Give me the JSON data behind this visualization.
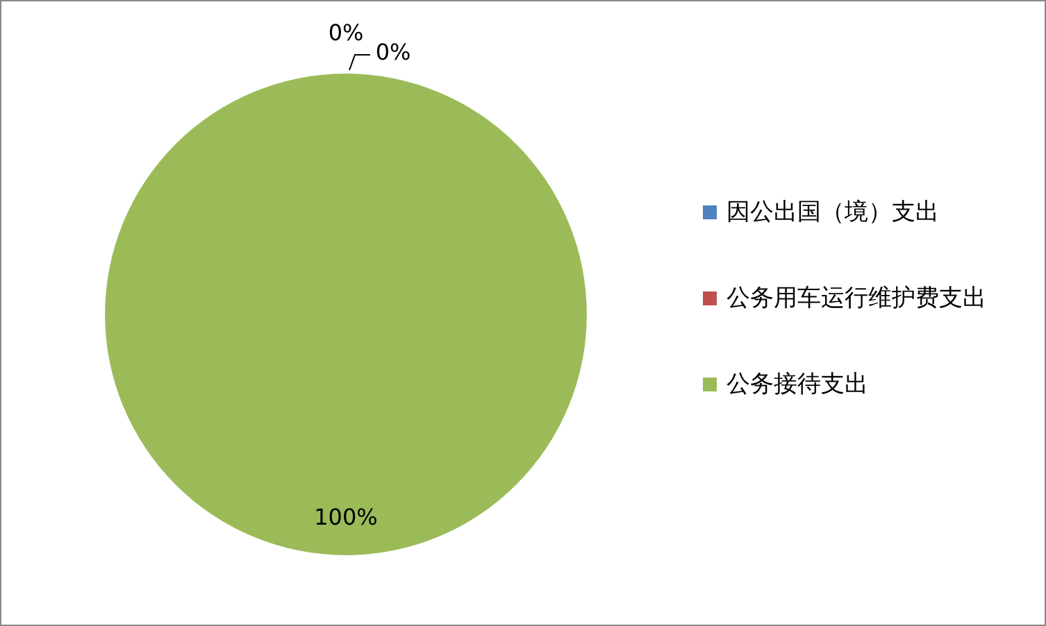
{
  "chart_data": {
    "type": "pie",
    "categories": [
      "因公出国（境）支出",
      "公务用车运行维护费支出",
      "公务接待支出"
    ],
    "values": [
      0,
      0,
      100
    ],
    "colors": [
      "#4f81bd",
      "#c0504d",
      "#9bbb59"
    ],
    "value_labels": [
      "0%",
      "0%",
      "100%"
    ],
    "legend": "right"
  }
}
